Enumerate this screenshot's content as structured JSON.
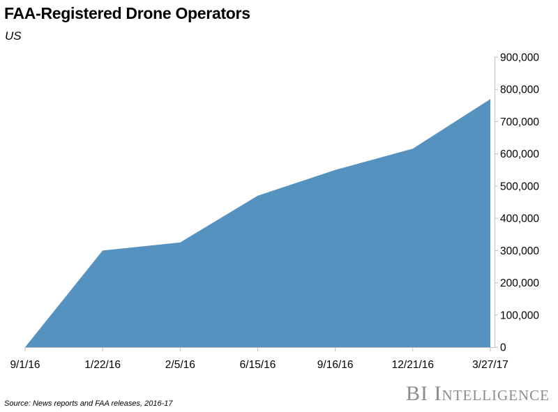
{
  "header": {
    "title": "FAA-Registered Drone Operators",
    "subtitle": "US"
  },
  "footer": {
    "source": "Source: News reports and FAA releases, 2016-17",
    "brand": "BI Intelligence"
  },
  "colors": {
    "area_fill": "#5592c0",
    "axis": "#bfbfbf"
  },
  "chart_data": {
    "type": "area",
    "title": "FAA-Registered Drone Operators",
    "subtitle": "US",
    "categories": [
      "9/1/16",
      "1/22/16",
      "2/5/16",
      "6/15/16",
      "9/16/16",
      "12/21/16",
      "3/27/17"
    ],
    "series": [
      {
        "values": [
          0,
          300000,
          325000,
          470000,
          550000,
          616000,
          770000
        ]
      }
    ],
    "y_ticks": [
      "0",
      "100,000",
      "200,000",
      "300,000",
      "400,000",
      "500,000",
      "600,000",
      "700,000",
      "800,000",
      "900,000"
    ],
    "ylim": [
      0,
      900000
    ],
    "y_axis_side": "right",
    "grid": false,
    "legend": "none"
  }
}
